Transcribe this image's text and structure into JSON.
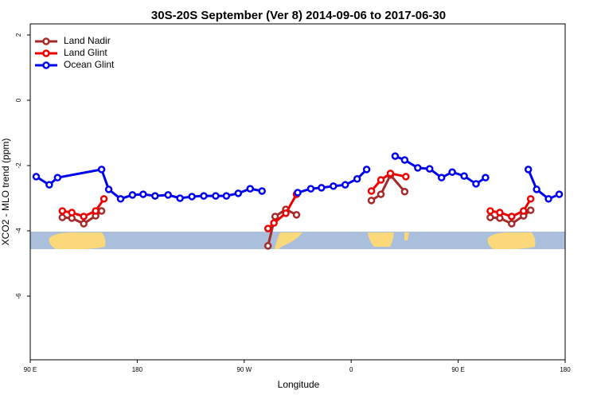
{
  "chart_data": {
    "type": "line",
    "title": "30S-20S September (Ver 8)   2014-09-06 to 2017-06-30",
    "x_label": "Longitude",
    "y_label": "XCO2 - MLO trend (ppm)",
    "xlim": [
      90,
      540
    ],
    "ylim": [
      -7.95,
      2.34
    ],
    "xticks": [
      {
        "value": 90,
        "label": "90 E"
      },
      {
        "value": 180,
        "label": "180"
      },
      {
        "value": 270,
        "label": "90 W"
      },
      {
        "value": 360,
        "label": "0"
      },
      {
        "value": 450,
        "label": "90 E"
      },
      {
        "value": 540,
        "label": "180"
      }
    ],
    "yticks": [
      2,
      0,
      -2,
      -4,
      -6
    ],
    "legend": "top-left",
    "series": [
      {
        "name": "Land Nadir",
        "color": "#a52a2a",
        "x": [
          117,
          125,
          135,
          145,
          150,
          null,
          290,
          296,
          305,
          314,
          null,
          377,
          385,
          393,
          405,
          null,
          477,
          485,
          495,
          505,
          511
        ],
        "values": [
          -3.59,
          -3.61,
          -3.78,
          -3.54,
          -3.39,
          null,
          -4.46,
          -3.56,
          -3.34,
          -3.51,
          null,
          -3.07,
          -2.88,
          -2.29,
          -2.8,
          null,
          -3.59,
          -3.61,
          -3.78,
          -3.54,
          -3.37
        ]
      },
      {
        "name": "Land Glint",
        "color": "#ee0000",
        "x": [
          117,
          125,
          135,
          145,
          152,
          null,
          290,
          295,
          305,
          314,
          null,
          377,
          385,
          393,
          406,
          null,
          477,
          485,
          495,
          505,
          511
        ],
        "values": [
          -3.39,
          -3.44,
          -3.56,
          -3.39,
          -3.02,
          null,
          -3.93,
          -3.76,
          -3.46,
          -2.88,
          null,
          -2.78,
          -2.44,
          -2.24,
          -2.34,
          null,
          -3.39,
          -3.44,
          -3.56,
          -3.39,
          -3.02
        ]
      },
      {
        "name": "Ocean Glint",
        "color": "#0000ee",
        "x": [
          95,
          106,
          113,
          150,
          156,
          166,
          176,
          185,
          195,
          206,
          216,
          226,
          236,
          246,
          255,
          265,
          275,
          285,
          null,
          315,
          326,
          335,
          345,
          355,
          365,
          373,
          null,
          397,
          405,
          416,
          426,
          436,
          445,
          455,
          465,
          473,
          null,
          509,
          516,
          526,
          535
        ],
        "values": [
          -2.34,
          -2.59,
          -2.37,
          -2.12,
          -2.73,
          -3.02,
          -2.9,
          -2.88,
          -2.93,
          -2.9,
          -3.0,
          -2.95,
          -2.93,
          -2.93,
          -2.93,
          -2.85,
          -2.71,
          -2.78,
          null,
          -2.83,
          -2.71,
          -2.68,
          -2.63,
          -2.59,
          -2.41,
          -2.12,
          null,
          -1.71,
          -1.83,
          -2.07,
          -2.1,
          -2.37,
          -2.2,
          -2.32,
          -2.56,
          -2.37,
          null,
          -2.12,
          -2.73,
          -3.02,
          -2.88
        ]
      }
    ]
  }
}
